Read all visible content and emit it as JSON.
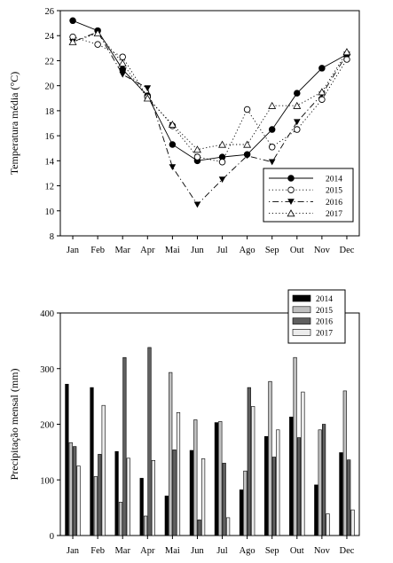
{
  "chart_data": [
    {
      "type": "line",
      "title": "",
      "xlabel": "",
      "ylabel": "Temperatura média (°C)",
      "categories": [
        "Jan",
        "Feb",
        "Mar",
        "Apr",
        "Mai",
        "Jun",
        "Jul",
        "Ago",
        "Sep",
        "Out",
        "Nov",
        "Dec"
      ],
      "ylim": [
        8,
        26
      ],
      "yticks": [
        8,
        10,
        12,
        14,
        16,
        18,
        20,
        22,
        24,
        26
      ],
      "grid": false,
      "legend_position": "bottom-right",
      "series": [
        {
          "name": "2014",
          "style": "solid",
          "marker": "filled-circle",
          "values": [
            25.2,
            24.4,
            21.3,
            19.2,
            15.3,
            14.0,
            14.3,
            14.5,
            16.5,
            19.4,
            21.4,
            22.5
          ]
        },
        {
          "name": "2015",
          "style": "dotted",
          "marker": "open-circle",
          "values": [
            23.9,
            23.3,
            22.3,
            19.1,
            16.8,
            14.3,
            13.9,
            18.1,
            15.1,
            16.5,
            18.9,
            22.1
          ]
        },
        {
          "name": "2016",
          "style": "dashdot",
          "marker": "filled-triangle-down",
          "values": [
            23.5,
            24.3,
            20.9,
            19.8,
            13.5,
            10.5,
            12.5,
            14.4,
            13.9,
            17.1,
            19.3,
            22.5
          ]
        },
        {
          "name": "2017",
          "style": "dotted",
          "marker": "open-triangle-up",
          "values": [
            23.5,
            24.2,
            21.8,
            19.0,
            16.9,
            14.9,
            15.3,
            15.3,
            18.4,
            18.4,
            19.5,
            22.7
          ]
        }
      ]
    },
    {
      "type": "bar",
      "title": "",
      "xlabel": "",
      "ylabel": "Precipitação mensal (mm)",
      "categories": [
        "Jan",
        "Feb",
        "Mar",
        "Apr",
        "Mai",
        "Jun",
        "Jul",
        "Ago",
        "Sep",
        "Out",
        "Nov",
        "Dec"
      ],
      "ylim": [
        0,
        400
      ],
      "yticks": [
        0,
        100,
        200,
        300,
        400
      ],
      "grid": false,
      "legend_position": "top-right",
      "series": [
        {
          "name": "2014",
          "color": "#000000",
          "values": [
            272,
            266,
            151,
            103,
            71,
            153,
            203,
            82,
            178,
            213,
            91,
            149
          ]
        },
        {
          "name": "2015",
          "color": "#c0c0c0",
          "values": [
            167,
            106,
            60,
            35,
            293,
            208,
            205,
            116,
            277,
            320,
            190,
            260
          ]
        },
        {
          "name": "2016",
          "color": "#606060",
          "values": [
            160,
            146,
            320,
            338,
            154,
            28,
            130,
            266,
            141,
            176,
            200,
            136
          ]
        },
        {
          "name": "2017",
          "color": "#ececec",
          "values": [
            125,
            234,
            139,
            135,
            221,
            138,
            32,
            232,
            190,
            258,
            39,
            46
          ]
        }
      ]
    }
  ]
}
